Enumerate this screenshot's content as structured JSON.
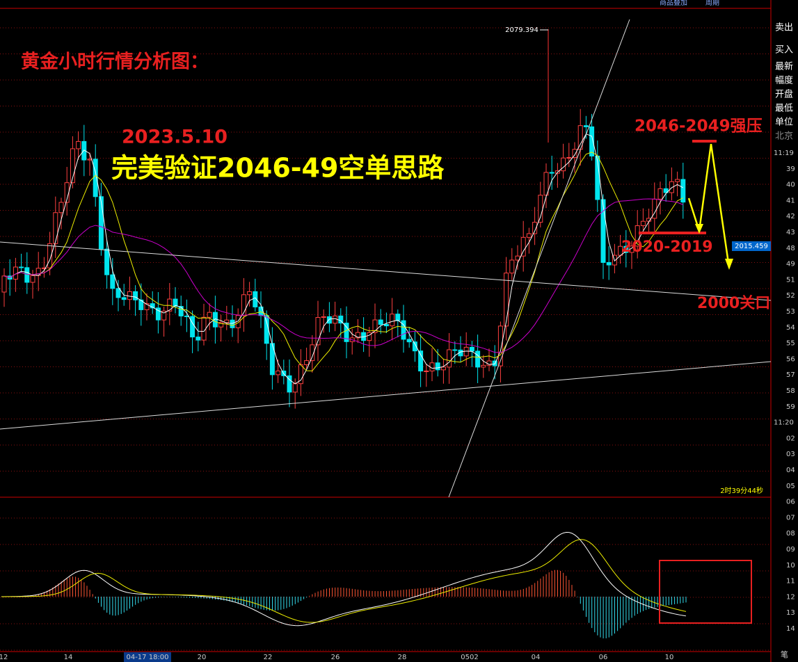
{
  "annotations": {
    "title": "黄金小时行情分析图：",
    "date": "2023.5.10",
    "headline": "完美验证2046-49空单思路",
    "resistance": "2046-2049强压",
    "support": "2020-2019",
    "level": "2000关口"
  },
  "chart": {
    "high_label": "2079.394",
    "last_price": "2015.459",
    "countdown": "2时39分44秒"
  },
  "toolbar": {
    "items": [
      "商品叠加",
      "周期"
    ]
  },
  "x_axis": {
    "labels": [
      "12",
      "14",
      "04-17 18:00",
      "20",
      "22",
      "26",
      "28",
      "0502",
      "04",
      "06",
      "10"
    ]
  },
  "side_panel": {
    "buttons": [
      "卖出",
      "买入"
    ],
    "fields": [
      "最新",
      "幅度",
      "开盘",
      "最低",
      "单位",
      "北京"
    ],
    "times": [
      "11:19",
      "39",
      "40",
      "41",
      "42",
      "43",
      "48",
      "49",
      "51",
      "52",
      "53",
      "54",
      "55",
      "56",
      "57",
      "58",
      "59",
      "11:20",
      "02",
      "03",
      "04",
      "05",
      "06",
      "07",
      "08",
      "09",
      "10",
      "11",
      "12",
      "13",
      "14"
    ],
    "footer": "笔"
  }
}
